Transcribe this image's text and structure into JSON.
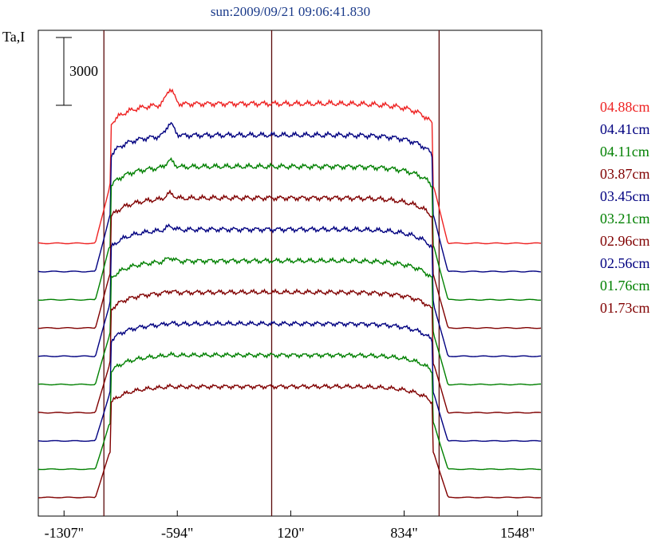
{
  "chart_data": {
    "type": "line",
    "title": "sun:2009/09/21 09:06:41.830",
    "ylabel": "Ta,I",
    "scale_bar_label": "3000",
    "xlim": [
      -1469,
      1700
    ],
    "x_ticks": [
      {
        "value": -1307,
        "label": "-1307\""
      },
      {
        "value": -594,
        "label": "-594\""
      },
      {
        "value": 120,
        "label": "120\""
      },
      {
        "value": 834,
        "label": "834\""
      },
      {
        "value": 1548,
        "label": "1548\""
      }
    ],
    "vertical_markers": [
      -1056,
      0,
      1054
    ],
    "series": [
      {
        "name": "04.88cm",
        "color": "#ee2222",
        "offset": 0
      },
      {
        "name": "04.41cm",
        "color": "#000080",
        "offset": 1
      },
      {
        "name": "04.11cm",
        "color": "#008000",
        "offset": 2
      },
      {
        "name": "03.87cm",
        "color": "#800000",
        "offset": 3
      },
      {
        "name": "03.45cm",
        "color": "#000080",
        "offset": 4
      },
      {
        "name": "03.21cm",
        "color": "#008000",
        "offset": 5
      },
      {
        "name": "02.96cm",
        "color": "#800000",
        "offset": 6
      },
      {
        "name": "02.56cm",
        "color": "#000080",
        "offset": 7
      },
      {
        "name": "01.76cm",
        "color": "#008000",
        "offset": 8
      },
      {
        "name": "01.73cm",
        "color": "#800000",
        "offset": 9
      }
    ],
    "grid": false,
    "legend_position": "right"
  }
}
